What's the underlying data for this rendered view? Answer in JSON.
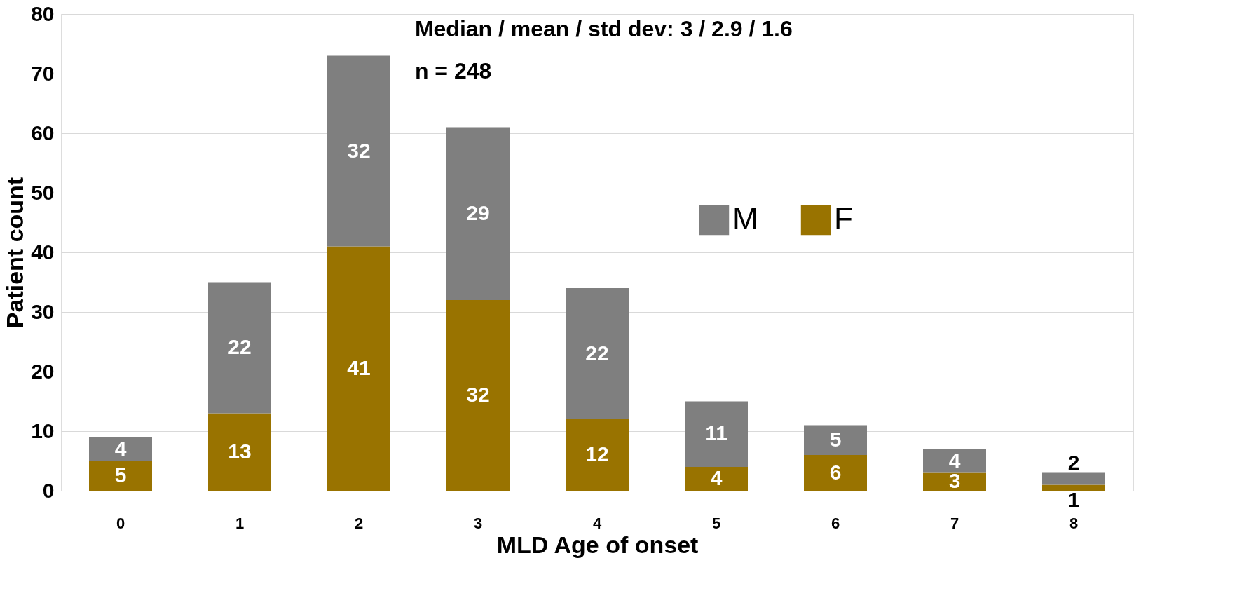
{
  "chart_data": {
    "type": "bar",
    "stacked": true,
    "xlabel": "MLD Age of onset",
    "ylabel": "Patient count",
    "categories": [
      "0",
      "1",
      "2",
      "3",
      "4",
      "5",
      "6",
      "7",
      "8"
    ],
    "series": [
      {
        "name": "F",
        "color": "#997300",
        "values": [
          5,
          13,
          41,
          32,
          12,
          4,
          6,
          3,
          1
        ]
      },
      {
        "name": "M",
        "color": "#7f7f7f",
        "values": [
          4,
          22,
          32,
          29,
          22,
          11,
          5,
          4,
          2
        ]
      }
    ],
    "ylim": [
      0,
      80
    ],
    "yticks": [
      0,
      10,
      20,
      30,
      40,
      50,
      60,
      70,
      80
    ],
    "grid": "y",
    "legend": "right",
    "data_labels": true,
    "annotations": [
      "Median / mean / std dev: 3 / 2.9 / 1.6",
      "n = 248"
    ]
  }
}
